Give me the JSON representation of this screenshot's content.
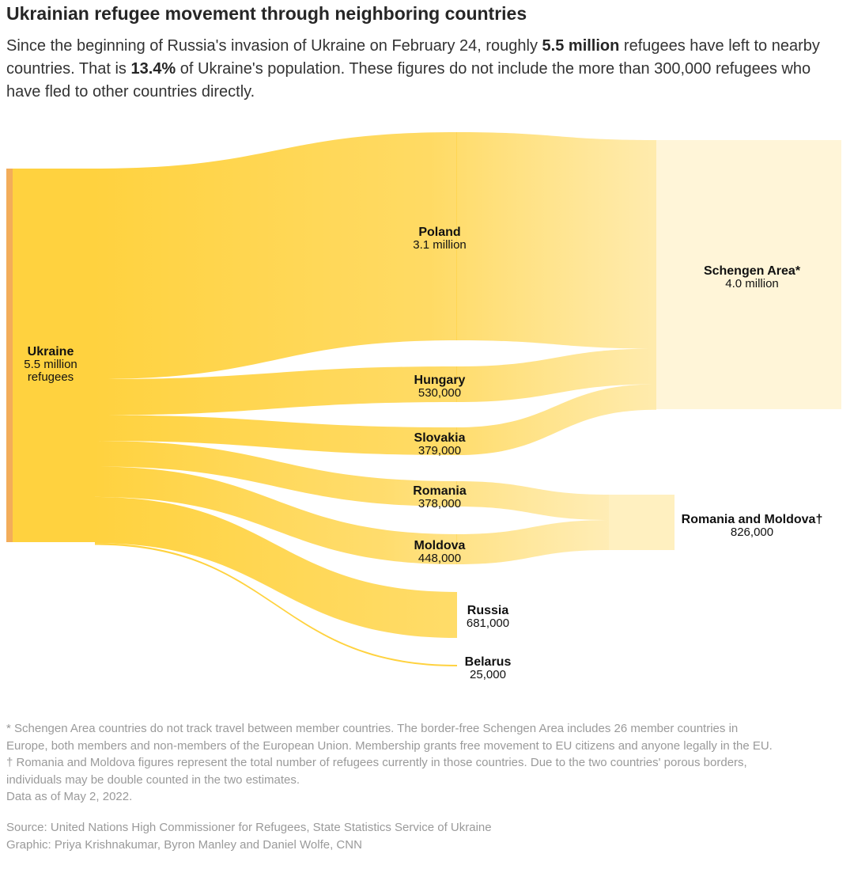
{
  "title": "Ukrainian refugee movement through neighboring countries",
  "subtitle": {
    "part1": "Since the beginning of Russia's invasion of Ukraine on February 24, roughly ",
    "bold1": "5.5 million",
    "part2": " refugees have left to nearby countries. That is ",
    "bold2": "13.4%",
    "part3": " of Ukraine's population. These figures do not include the more than 300,000 refugees who have fled to other countries directly."
  },
  "chart_data": {
    "type": "sankey",
    "colors": {
      "flow": "#ffcb3a",
      "source_bar": "#f3ad5a",
      "text": "#111111"
    },
    "nodes": {
      "ukraine": {
        "name": "Ukraine",
        "value_label": "5.5 million",
        "extra_label": "refugees",
        "value": 5500000
      },
      "poland": {
        "name": "Poland",
        "value_label": "3.1 million",
        "value": 3100000
      },
      "hungary": {
        "name": "Hungary",
        "value_label": "530,000",
        "value": 530000
      },
      "slovakia": {
        "name": "Slovakia",
        "value_label": "379,000",
        "value": 379000
      },
      "romania": {
        "name": "Romania",
        "value_label": "378,000",
        "value": 378000
      },
      "moldova": {
        "name": "Moldova",
        "value_label": "448,000",
        "value": 448000
      },
      "russia": {
        "name": "Russia",
        "value_label": "681,000",
        "value": 681000
      },
      "belarus": {
        "name": "Belarus",
        "value_label": "25,000",
        "value": 25000
      },
      "schengen": {
        "name": "Schengen Area*",
        "value_label": "4.0 million",
        "value": 4000000
      },
      "romania_moldova": {
        "name": "Romania and Moldova†",
        "value_label": "826,000",
        "value": 826000
      }
    },
    "links": [
      {
        "source": "ukraine",
        "target": "poland",
        "value": 3100000
      },
      {
        "source": "ukraine",
        "target": "hungary",
        "value": 530000
      },
      {
        "source": "ukraine",
        "target": "slovakia",
        "value": 379000
      },
      {
        "source": "ukraine",
        "target": "romania",
        "value": 378000
      },
      {
        "source": "ukraine",
        "target": "moldova",
        "value": 448000
      },
      {
        "source": "ukraine",
        "target": "russia",
        "value": 681000
      },
      {
        "source": "ukraine",
        "target": "belarus",
        "value": 25000
      },
      {
        "source": "poland",
        "target": "schengen",
        "value": 3100000
      },
      {
        "source": "hungary",
        "target": "schengen",
        "value": 530000
      },
      {
        "source": "slovakia",
        "target": "schengen",
        "value": 379000
      },
      {
        "source": "romania",
        "target": "romania_moldova",
        "value": 378000
      },
      {
        "source": "moldova",
        "target": "romania_moldova",
        "value": 448000
      }
    ]
  },
  "notes": [
    "* Schengen Area countries do not track travel between member countries. The border-free Schengen Area includes 26 member countries in",
    "Europe, both members and non-members of the European Union. Membership grants free movement to EU citizens and anyone legally in the EU.",
    "† Romania and Moldova figures represent the total number of refugees currently in those countries. Due to the two countries' porous borders,",
    "individuals may be double counted in the two estimates.",
    "Data as of May 2, 2022."
  ],
  "credits": {
    "source": "Source: United Nations High Commissioner for Refugees, State Statistics Service of Ukraine",
    "graphic": "Graphic: Priya Krishnakumar, Byron Manley and Daniel Wolfe, CNN"
  }
}
